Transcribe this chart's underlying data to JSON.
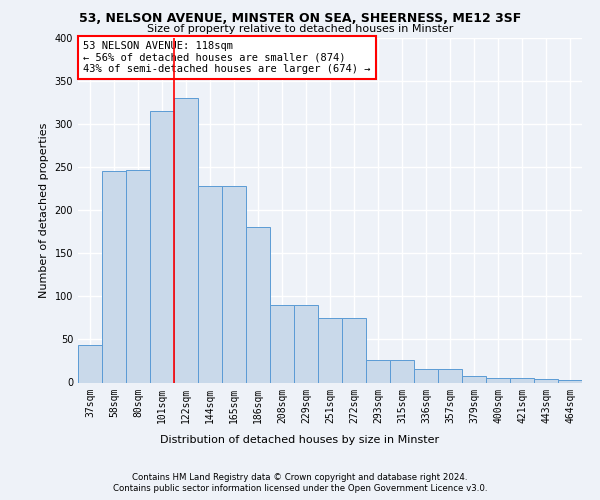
{
  "title": "53, NELSON AVENUE, MINSTER ON SEA, SHEERNESS, ME12 3SF",
  "subtitle": "Size of property relative to detached houses in Minster",
  "xlabel": "Distribution of detached houses by size in Minster",
  "ylabel": "Number of detached properties",
  "categories": [
    "37sqm",
    "58sqm",
    "80sqm",
    "101sqm",
    "122sqm",
    "144sqm",
    "165sqm",
    "186sqm",
    "208sqm",
    "229sqm",
    "251sqm",
    "272sqm",
    "293sqm",
    "315sqm",
    "336sqm",
    "357sqm",
    "379sqm",
    "400sqm",
    "421sqm",
    "443sqm",
    "464sqm"
  ],
  "values": [
    43,
    245,
    246,
    315,
    330,
    228,
    228,
    180,
    90,
    90,
    75,
    75,
    26,
    26,
    16,
    16,
    8,
    5,
    5,
    4,
    3
  ],
  "bar_color": "#c9d9ea",
  "bar_edge_color": "#5b9bd5",
  "annotation_title": "53 NELSON AVENUE: 118sqm",
  "annotation_line1": "← 56% of detached houses are smaller (874)",
  "annotation_line2": "43% of semi-detached houses are larger (674) →",
  "footer1": "Contains HM Land Registry data © Crown copyright and database right 2024.",
  "footer2": "Contains public sector information licensed under the Open Government Licence v3.0.",
  "background_color": "#eef2f8",
  "grid_color": "#ffffff",
  "ylim": [
    0,
    400
  ],
  "yticks": [
    0,
    50,
    100,
    150,
    200,
    250,
    300,
    350,
    400
  ]
}
